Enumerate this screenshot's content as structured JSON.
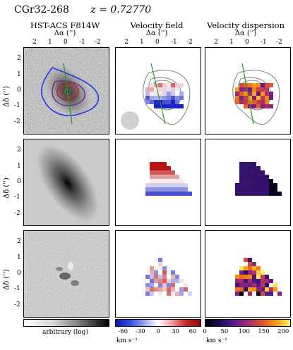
{
  "header": {
    "object": "CGr32-268",
    "redshift": "z = 0.72770"
  },
  "columns": [
    {
      "title": "HST-ACS F814W",
      "xlabel": "Δα ('')"
    },
    {
      "title": "Velocity field",
      "xlabel": "Δα ('')"
    },
    {
      "title": "Velocity dispersion",
      "xlabel": "Δα ('')"
    }
  ],
  "xticks": [
    "2",
    "1",
    "0",
    "-1",
    "-2"
  ],
  "yticks": [
    "2",
    "1",
    "0",
    "-1",
    "-2"
  ],
  "ylabel": "Δδ ('')",
  "colorbars": {
    "image": {
      "label": "arbitrary (log)"
    },
    "velocity": {
      "ticks": [
        "-60",
        "-30",
        "0",
        "30",
        "60"
      ],
      "unit": "km s⁻¹",
      "range": [
        -75,
        75
      ]
    },
    "dispersion": {
      "ticks": [
        "0",
        "50",
        "100",
        "150",
        "200"
      ],
      "unit": "km s⁻¹",
      "range": [
        0,
        220
      ]
    }
  }
}
